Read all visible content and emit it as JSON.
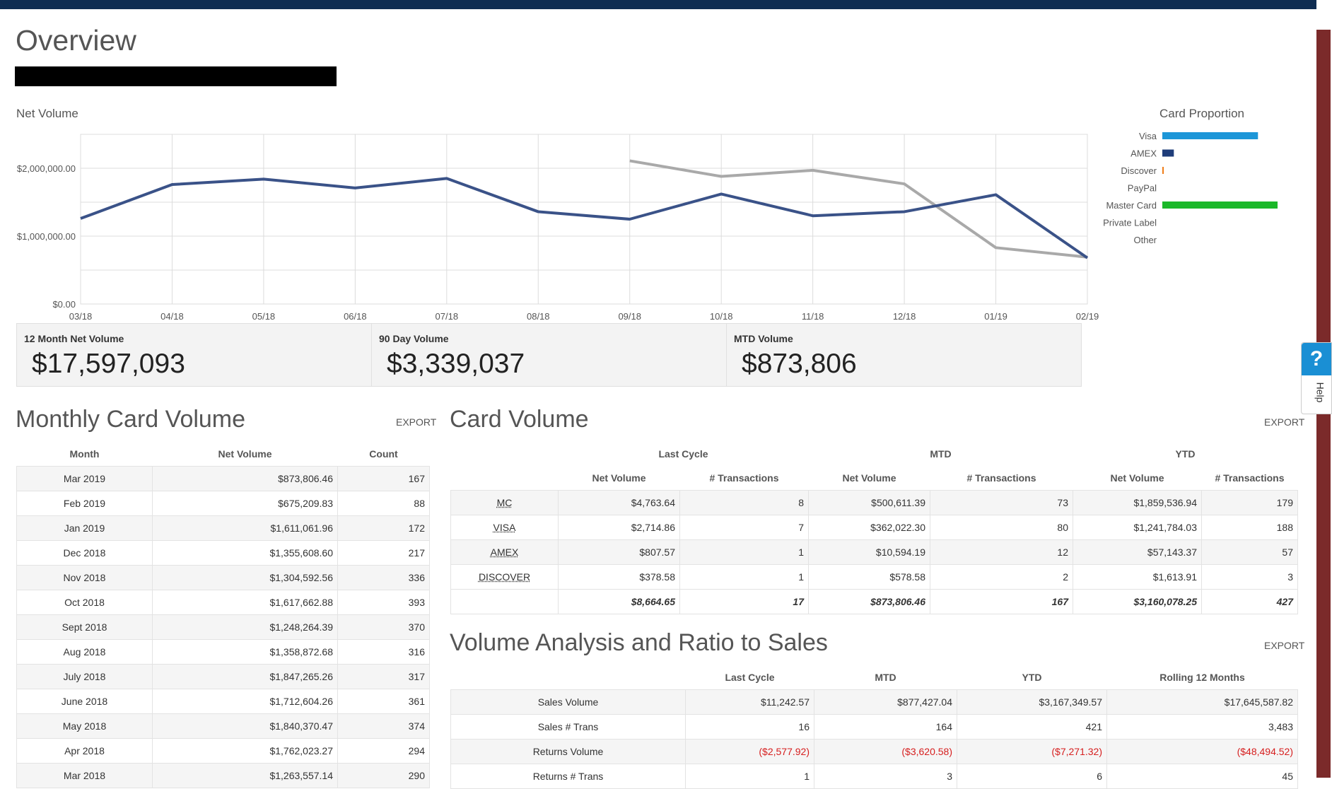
{
  "page": {
    "title": "Overview"
  },
  "net_volume": {
    "title": "Net Volume"
  },
  "chart_data": [
    {
      "type": "line",
      "title": "Net Volume",
      "categories": [
        "03/18",
        "04/18",
        "05/18",
        "06/18",
        "07/18",
        "08/18",
        "09/18",
        "10/18",
        "11/18",
        "12/18",
        "01/19",
        "02/19"
      ],
      "y_ticks": [
        "$0.00",
        "$1,000,000.00",
        "$2,000,000.00"
      ],
      "ylim": [
        0,
        2500000
      ],
      "grid": true,
      "series": [
        {
          "values": [
            1260000,
            1760000,
            1840000,
            1710000,
            1850000,
            1360000,
            1250000,
            1620000,
            1300000,
            1360000,
            1610000,
            680000
          ],
          "color": "#3a5288"
        },
        {
          "values": [
            null,
            null,
            null,
            null,
            null,
            null,
            2110000,
            1880000,
            1970000,
            1770000,
            830000,
            690000
          ],
          "color": "#a9a9a9"
        }
      ]
    },
    {
      "type": "bar",
      "title": "Card Proportion",
      "categories": [
        "Visa",
        "AMEX",
        "Discover",
        "PayPal",
        "Master Card",
        "Private Label",
        "Other"
      ],
      "values": [
        0.83,
        0.1,
        0.01,
        0,
        1.0,
        0,
        0
      ],
      "colors": [
        "#1c96d8",
        "#1f3d7a",
        "#f07d18",
        "#cccccc",
        "#1bb829",
        "#cccccc",
        "#cccccc"
      ]
    }
  ],
  "kpis": [
    {
      "label": "12 Month Net Volume",
      "value": "$17,597,093"
    },
    {
      "label": "90 Day Volume",
      "value": "$3,339,037"
    },
    {
      "label": "MTD Volume",
      "value": "$873,806"
    }
  ],
  "monthly_card_volume": {
    "title": "Monthly Card Volume",
    "export": "EXPORT",
    "headers": [
      "Month",
      "Net Volume",
      "Count"
    ],
    "rows": [
      [
        "Mar 2019",
        "$873,806.46",
        "167"
      ],
      [
        "Feb 2019",
        "$675,209.83",
        "88"
      ],
      [
        "Jan 2019",
        "$1,611,061.96",
        "172"
      ],
      [
        "Dec 2018",
        "$1,355,608.60",
        "217"
      ],
      [
        "Nov 2018",
        "$1,304,592.56",
        "336"
      ],
      [
        "Oct 2018",
        "$1,617,662.88",
        "393"
      ],
      [
        "Sept 2018",
        "$1,248,264.39",
        "370"
      ],
      [
        "Aug 2018",
        "$1,358,872.68",
        "316"
      ],
      [
        "July 2018",
        "$1,847,265.26",
        "317"
      ],
      [
        "June 2018",
        "$1,712,604.26",
        "361"
      ],
      [
        "May 2018",
        "$1,840,370.47",
        "374"
      ],
      [
        "Apr 2018",
        "$1,762,023.27",
        "294"
      ],
      [
        "Mar 2018",
        "$1,263,557.14",
        "290"
      ]
    ]
  },
  "card_volume": {
    "title": "Card Volume",
    "export": "EXPORT",
    "groups": [
      "Last Cycle",
      "MTD",
      "YTD"
    ],
    "headers": [
      "Net Volume",
      "# Transactions",
      "Net Volume",
      "# Transactions",
      "Net Volume",
      "# Transactions"
    ],
    "rows": [
      {
        "card": "MC",
        "values": [
          "$4,763.64",
          "8",
          "$500,611.39",
          "73",
          "$1,859,536.94",
          "179"
        ]
      },
      {
        "card": "VISA",
        "values": [
          "$2,714.86",
          "7",
          "$362,022.30",
          "80",
          "$1,241,784.03",
          "188"
        ]
      },
      {
        "card": "AMEX",
        "values": [
          "$807.57",
          "1",
          "$10,594.19",
          "12",
          "$57,143.37",
          "57"
        ]
      },
      {
        "card": "DISCOVER",
        "values": [
          "$378.58",
          "1",
          "$578.58",
          "2",
          "$1,613.91",
          "3"
        ]
      }
    ],
    "totals": [
      "$8,664.65",
      "17",
      "$873,806.46",
      "167",
      "$3,160,078.25",
      "427"
    ]
  },
  "volume_analysis": {
    "title": "Volume Analysis and Ratio to Sales",
    "export": "EXPORT",
    "headers": [
      "Last Cycle",
      "MTD",
      "YTD",
      "Rolling 12 Months"
    ],
    "rows": [
      {
        "label": "Sales Volume",
        "values": [
          "$11,242.57",
          "$877,427.04",
          "$3,167,349.57",
          "$17,645,587.82"
        ],
        "negative": false
      },
      {
        "label": "Sales # Trans",
        "values": [
          "16",
          "164",
          "421",
          "3,483"
        ],
        "negative": false
      },
      {
        "label": "Returns Volume",
        "values": [
          "($2,577.92)",
          "($3,620.58)",
          "($7,271.32)",
          "($48,494.52)"
        ],
        "negative": true
      },
      {
        "label": "Returns # Trans",
        "values": [
          "1",
          "3",
          "6",
          "45"
        ],
        "negative": false
      }
    ]
  },
  "help": {
    "icon": "?",
    "label": "Help"
  }
}
